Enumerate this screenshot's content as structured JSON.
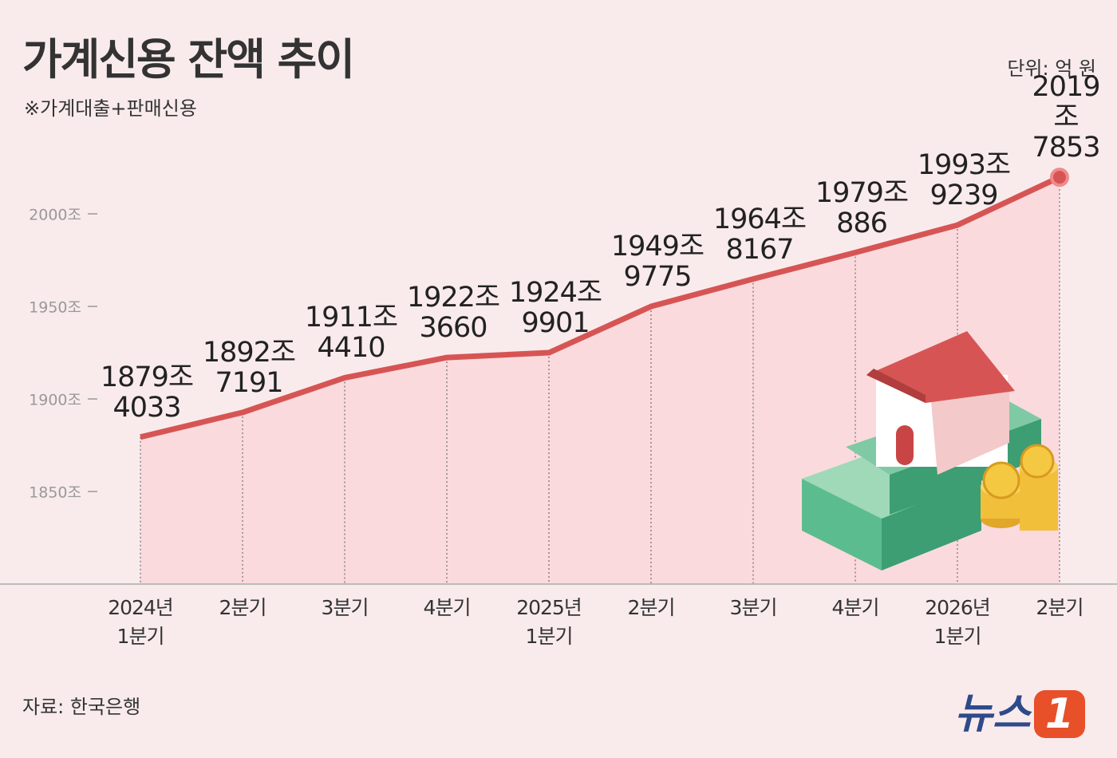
{
  "chart_data": {
    "type": "line",
    "title": "가계신용 잔액 추이",
    "subtitle": "※가계대출+판매신용",
    "unit_note": "단위: 억 원",
    "source": "자료: 한국은행",
    "logo": {
      "text": "뉴스",
      "mark": "1"
    },
    "categories": [
      "2024년\n1분기",
      "2분기",
      "3분기",
      "4분기",
      "2025년\n1분기",
      "2분기",
      "3분기",
      "4분기",
      "2026년\n1분기",
      "2분기"
    ],
    "values": [
      1879.4033,
      1892.7191,
      1911.441,
      1922.366,
      1924.9901,
      1949.9775,
      1964.8167,
      1979.0886,
      1993.9239,
      2019.7853
    ],
    "value_labels": [
      "1879조\n4033",
      "1892조\n7191",
      "1911조\n4410",
      "1922조\n3660",
      "1924조\n9901",
      "1949조\n9775",
      "1964조\n8167",
      "1979조\n886",
      "1993조\n9239",
      "2019조\n7853"
    ],
    "color": "#d65554",
    "area_color": "#fadadd",
    "ylim": [
      1800,
      2100
    ],
    "yticks": [
      {
        "value": 1850,
        "label": "1850조"
      },
      {
        "value": 1900,
        "label": "1900조"
      },
      {
        "value": 1950,
        "label": "1950조"
      },
      {
        "value": 2000,
        "label": "2000조"
      }
    ],
    "grid": false
  }
}
